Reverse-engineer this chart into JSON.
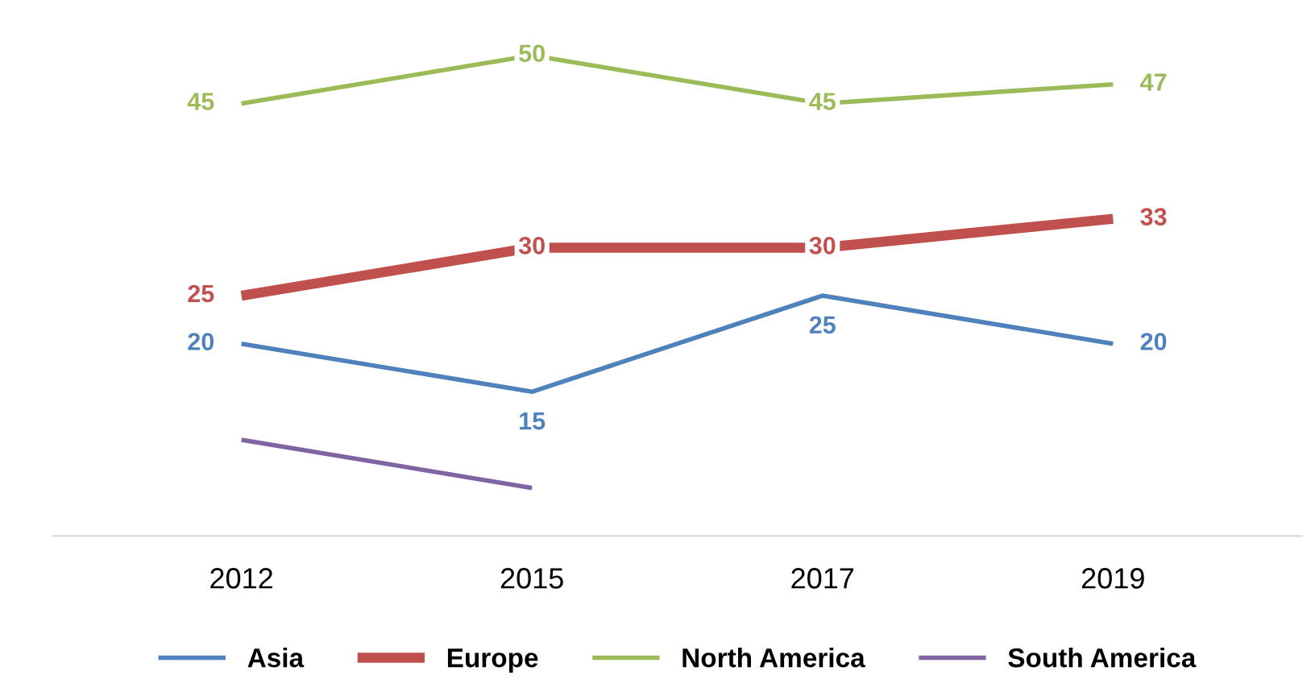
{
  "chart_data": {
    "type": "line",
    "categories": [
      "2012",
      "2015",
      "2017",
      "2019"
    ],
    "series": [
      {
        "name": "Asia",
        "color": "#4f81bd",
        "values": [
          20,
          15,
          25,
          20
        ],
        "value_labels": [
          "20",
          "15",
          "25",
          "20"
        ]
      },
      {
        "name": "Europe",
        "color": "#c0504d",
        "values": [
          25,
          30,
          30,
          33
        ],
        "value_labels": [
          "25",
          "30",
          "30",
          "33"
        ]
      },
      {
        "name": "North America",
        "color": "#9bbb59",
        "values": [
          45,
          50,
          45,
          47
        ],
        "value_labels": [
          "45",
          "50",
          "45",
          "47"
        ]
      },
      {
        "name": "South America",
        "color": "#8064a2",
        "values": [
          10,
          5,
          null,
          null
        ]
      }
    ],
    "tick_labels": "x",
    "grid": false,
    "legend": "bottom",
    "line_style": "solid"
  }
}
